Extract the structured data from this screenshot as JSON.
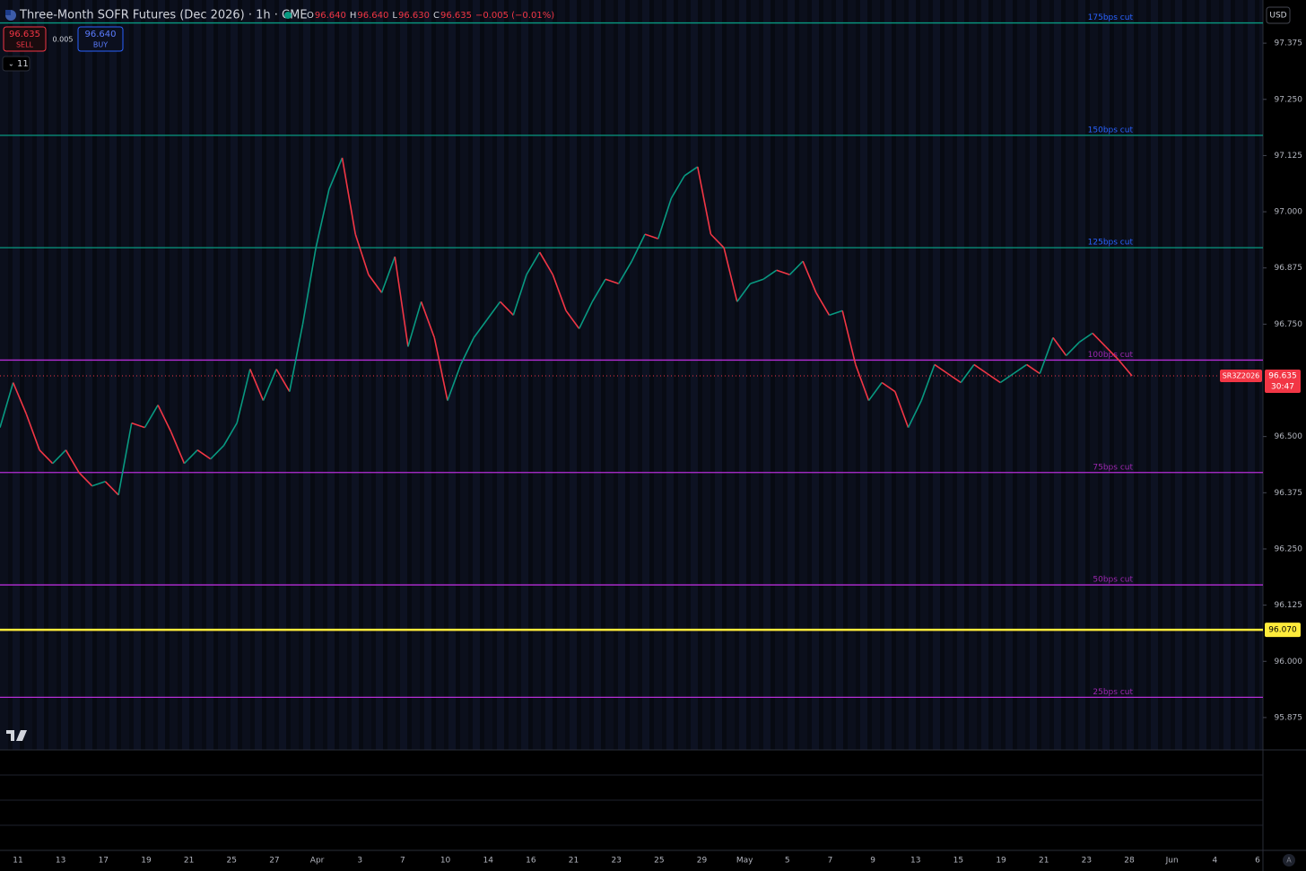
{
  "header": {
    "title": "Three-Month SOFR Futures (Dec 2026) · 1h · CME",
    "ohlc": [
      {
        "key": "O",
        "value": "96.640"
      },
      {
        "key": "H",
        "value": "96.640"
      },
      {
        "key": "L",
        "value": "96.630"
      },
      {
        "key": "C",
        "value": "96.635"
      }
    ],
    "change": "−0.005 (−0.01%)",
    "currency": "USD"
  },
  "trade": {
    "sell_price": "96.635",
    "sell": "SELL",
    "spread": "0.005",
    "buy_price": "96.640",
    "buy": "BUY",
    "collapsed_count": "11"
  },
  "chart_data": {
    "type": "line",
    "values": [
      96.52,
      96.62,
      96.55,
      96.47,
      96.44,
      96.47,
      96.42,
      96.39,
      96.4,
      96.37,
      96.53,
      96.52,
      96.57,
      96.51,
      96.44,
      96.47,
      96.45,
      96.48,
      96.53,
      96.65,
      96.58,
      96.65,
      96.6,
      96.75,
      96.92,
      97.05,
      97.12,
      96.95,
      96.86,
      96.82,
      96.9,
      96.7,
      96.8,
      96.72,
      96.58,
      96.66,
      96.72,
      96.76,
      96.8,
      96.77,
      96.86,
      96.91,
      96.86,
      96.78,
      96.74,
      96.8,
      96.85,
      96.84,
      96.89,
      96.95,
      96.94,
      97.03,
      97.08,
      97.1,
      96.95,
      96.92,
      96.8,
      96.84,
      96.85,
      96.87,
      96.86,
      96.89,
      96.82,
      96.77,
      96.78,
      96.66,
      96.58,
      96.62,
      96.6,
      96.52,
      96.58,
      96.66,
      96.64,
      96.62,
      96.66,
      96.64,
      96.62,
      96.64,
      96.66,
      96.64,
      96.72,
      96.68,
      96.71,
      96.73,
      96.7,
      96.67,
      96.635
    ],
    "up_color": "#089981",
    "down_color": "#f23645",
    "ylim": [
      95.803,
      97.471
    ],
    "yticks": [
      97.375,
      {
        "value": 97.25,
        "label": "97.250"
      },
      97.125,
      {
        "value": 97.0,
        "label": "97.000"
      },
      96.875,
      {
        "value": 96.75,
        "label": "96.750"
      },
      {
        "value": 96.5,
        "label": "96.500"
      },
      96.375,
      {
        "value": 96.25,
        "label": "96.250"
      },
      96.125,
      {
        "value": 96.0,
        "label": "96.000"
      },
      95.875
    ],
    "levels": [
      {
        "name": "175bps cut",
        "value": 97.42,
        "color": "#089981",
        "label_color": "#2962ff"
      },
      {
        "name": "150bps cut",
        "value": 97.17,
        "color": "#089981",
        "label_color": "#2962ff"
      },
      {
        "name": "125bps cut",
        "value": 96.92,
        "color": "#089981",
        "label_color": "#2962ff"
      },
      {
        "name": "100bps cut",
        "value": 96.67,
        "color": "#b52ed6",
        "label_color": "#9c27b0"
      },
      {
        "name": "75bps cut",
        "value": 96.42,
        "color": "#b52ed6",
        "label_color": "#9c27b0"
      },
      {
        "name": "50bps cut",
        "value": 96.17,
        "color": "#b52ed6",
        "label_color": "#9c27b0"
      },
      {
        "name": "25bps cut",
        "value": 95.92,
        "color": "#b52ed6",
        "label_color": "#9c27b0"
      }
    ],
    "alert_level": {
      "value": 96.07,
      "label": "96.070",
      "color": "#ffeb3b"
    },
    "last_price": {
      "symbol": "SR3Z2026",
      "value": 96.635,
      "label": "96.635",
      "countdown": "30:47",
      "color": "#f23645"
    },
    "x_axis_labels": [
      "11",
      "13",
      "17",
      "19",
      "21",
      "25",
      "27",
      "Apr",
      "3",
      "7",
      "10",
      "14",
      "16",
      "21",
      "23",
      "25",
      "29",
      "May",
      "5",
      "7",
      "9",
      "13",
      "15",
      "19",
      "21",
      "23",
      "28",
      "Jun",
      "4",
      "6"
    ]
  }
}
